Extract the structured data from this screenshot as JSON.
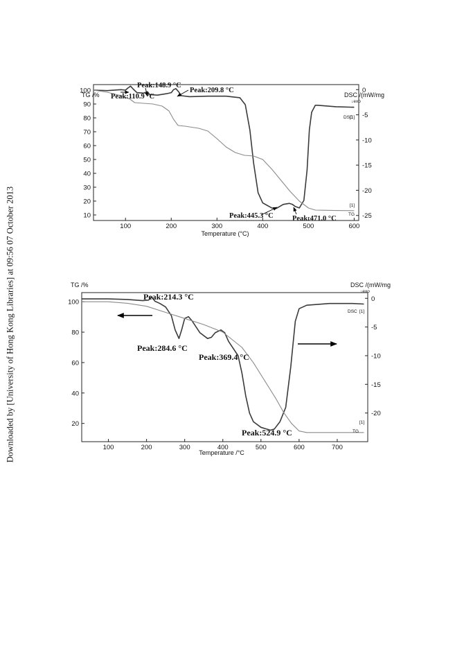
{
  "side_note": "Downloaded by [University of Hong Kong Libraries] at 09:56 07 October 2013",
  "colors": {
    "dsc": "#3a3a3a",
    "tg": "#8a8a8a",
    "axis": "#222222"
  },
  "chart_data": [
    {
      "type": "line",
      "title": "",
      "xlabel": "Temperature (°C)",
      "ylabel_left": "TG /%",
      "ylabel_right": "DSC /(mW/mg",
      "right_unit_note": "↓exo",
      "xlim": [
        30,
        610
      ],
      "ylim_left": [
        6,
        104
      ],
      "ylim_right": [
        -26,
        1
      ],
      "x_ticks": [
        "100",
        "200",
        "300",
        "400",
        "500",
        "600"
      ],
      "y_ticks_left": [
        "10",
        "20",
        "30",
        "40",
        "50",
        "60",
        "70",
        "80",
        "90",
        "100"
      ],
      "y_ticks_right": [
        "0",
        "-5",
        "-10",
        "-15",
        "-20",
        "-25"
      ],
      "grid": false,
      "series": [
        {
          "name": "DSC",
          "axis": "right",
          "tag": "[1]",
          "x": [
            30,
            60,
            90,
            100,
            105,
            111,
            117,
            125,
            140,
            148,
            153,
            170,
            190,
            200,
            205,
            210,
            216,
            222,
            240,
            280,
            320,
            350,
            362,
            372,
            380,
            390,
            400,
            420,
            430,
            445,
            458,
            465,
            471,
            480,
            490,
            497,
            502,
            507,
            515,
            520,
            560,
            600
          ],
          "values": [
            -0.1,
            -0.2,
            0,
            -0.1,
            0.3,
            0.7,
            0.1,
            -0.6,
            -0.7,
            -0.4,
            -1.0,
            -1.1,
            -0.8,
            -0.6,
            0,
            0.2,
            -0.4,
            -1.2,
            -1.4,
            -1.3,
            -1.3,
            -1.6,
            -3.0,
            -8.0,
            -14.5,
            -20.5,
            -22.5,
            -23.5,
            -23.6,
            -22.8,
            -22.6,
            -22.8,
            -23.2,
            -23.5,
            -22.0,
            -16.0,
            -8.0,
            -4.5,
            -3.1,
            -3.1,
            -3.4,
            -3.5
          ]
        },
        {
          "name": "TG",
          "axis": "left",
          "tag": "[1]",
          "x": [
            30,
            60,
            90,
            110,
            120,
            140,
            160,
            180,
            195,
            205,
            215,
            230,
            260,
            280,
            300,
            320,
            340,
            360,
            380,
            400,
            420,
            440,
            460,
            480,
            500,
            515,
            530,
            560,
            600
          ],
          "values": [
            100,
            98.5,
            96,
            93.5,
            91,
            90.5,
            90,
            88.5,
            85,
            79,
            74.5,
            74,
            72.5,
            70.5,
            65,
            59,
            55,
            53,
            52.5,
            50,
            43,
            35,
            27,
            20,
            15,
            13.5,
            13.4,
            13.2,
            13.1
          ]
        }
      ],
      "annotations": [
        {
          "text": "Peak:110.9 °C",
          "x": 110.9
        },
        {
          "text": "Peak:148.9 °C",
          "x": 148.9
        },
        {
          "text": "Peak:209.8 °C",
          "x": 209.8
        },
        {
          "text": "Peak:445.3 °C",
          "x": 445.3
        },
        {
          "text": "Peak:471.0 °C",
          "x": 471.0
        }
      ]
    },
    {
      "type": "line",
      "title": "",
      "xlabel": "Temperature /°C",
      "ylabel_left": "TG /%",
      "ylabel_right": "DSC /(mW/mg",
      "right_unit_note": "↓exo",
      "xlim": [
        30,
        780
      ],
      "ylim_left": [
        8,
        106
      ],
      "ylim_right": [
        -25,
        1
      ],
      "x_ticks": [
        "100",
        "200",
        "300",
        "400",
        "500",
        "600",
        "700"
      ],
      "y_ticks_left": [
        "20",
        "40",
        "60",
        "80",
        "100"
      ],
      "y_ticks_right": [
        "0",
        "-5",
        "-10",
        "-15",
        "-20"
      ],
      "grid": false,
      "series": [
        {
          "name": "DSC",
          "axis": "right",
          "tag": "[1]",
          "x": [
            30,
            100,
            150,
            190,
            205,
            214,
            222,
            235,
            250,
            265,
            275,
            285,
            292,
            300,
            310,
            320,
            340,
            360,
            370,
            380,
            395,
            405,
            415,
            425,
            440,
            450,
            460,
            470,
            480,
            500,
            520,
            525,
            535,
            550,
            565,
            578,
            590,
            600,
            620,
            680,
            740,
            770
          ],
          "values": [
            -0.1,
            -0.1,
            -0.2,
            -0.4,
            -0.3,
            0.2,
            -0.5,
            -0.9,
            -1.5,
            -3.0,
            -5.5,
            -7.0,
            -5.5,
            -3.5,
            -3.2,
            -4.0,
            -6.0,
            -7.0,
            -6.8,
            -6.0,
            -5.5,
            -6.0,
            -7.5,
            -8.5,
            -10.0,
            -13.0,
            -17.0,
            -20.0,
            -21.5,
            -22.5,
            -22.9,
            -23.0,
            -22.8,
            -21.5,
            -19.0,
            -12.0,
            -4.0,
            -1.8,
            -1.2,
            -0.9,
            -0.9,
            -1.0
          ]
        },
        {
          "name": "TG",
          "axis": "left",
          "tag": "[1]",
          "x": [
            30,
            100,
            150,
            200,
            250,
            300,
            350,
            400,
            450,
            480,
            500,
            520,
            540,
            560,
            580,
            600,
            620,
            650,
            700,
            770
          ],
          "values": [
            100,
            100,
            99,
            97,
            93,
            89,
            85,
            80,
            70,
            60,
            52,
            44,
            36,
            27,
            20,
            15,
            14,
            14,
            14,
            14
          ]
        }
      ],
      "annotations": [
        {
          "text": "Peak:214.3 °C",
          "x": 214.3
        },
        {
          "text": "Peak:284.6 °C",
          "x": 284.6
        },
        {
          "text": "Peak:369.4 °C",
          "x": 369.4
        },
        {
          "text": "Peak:524.9 °C",
          "x": 524.9
        }
      ]
    }
  ]
}
